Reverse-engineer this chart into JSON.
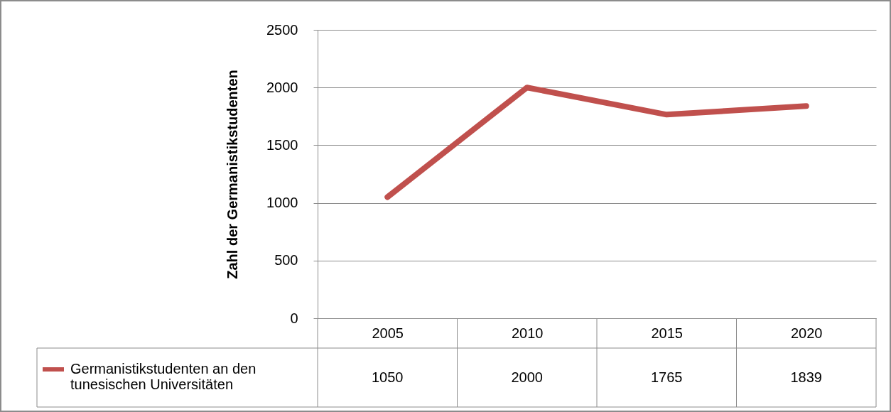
{
  "chart_data": {
    "type": "line",
    "ylabel": "Zahl der Germanistikstudenten",
    "categories": [
      "2005",
      "2010",
      "2015",
      "2020"
    ],
    "series": [
      {
        "name": "Germanistikstudenten an den tunesischen Universitäten",
        "color": "#c0504d",
        "values": [
          1050,
          2000,
          1765,
          1839
        ]
      }
    ],
    "ylim": [
      0,
      2500
    ],
    "yticks": [
      0,
      500,
      1000,
      1500,
      2000,
      2500
    ],
    "grid": "y",
    "data_labels": true,
    "legend": "bottom left",
    "marker": "none",
    "line_style": "solid"
  }
}
